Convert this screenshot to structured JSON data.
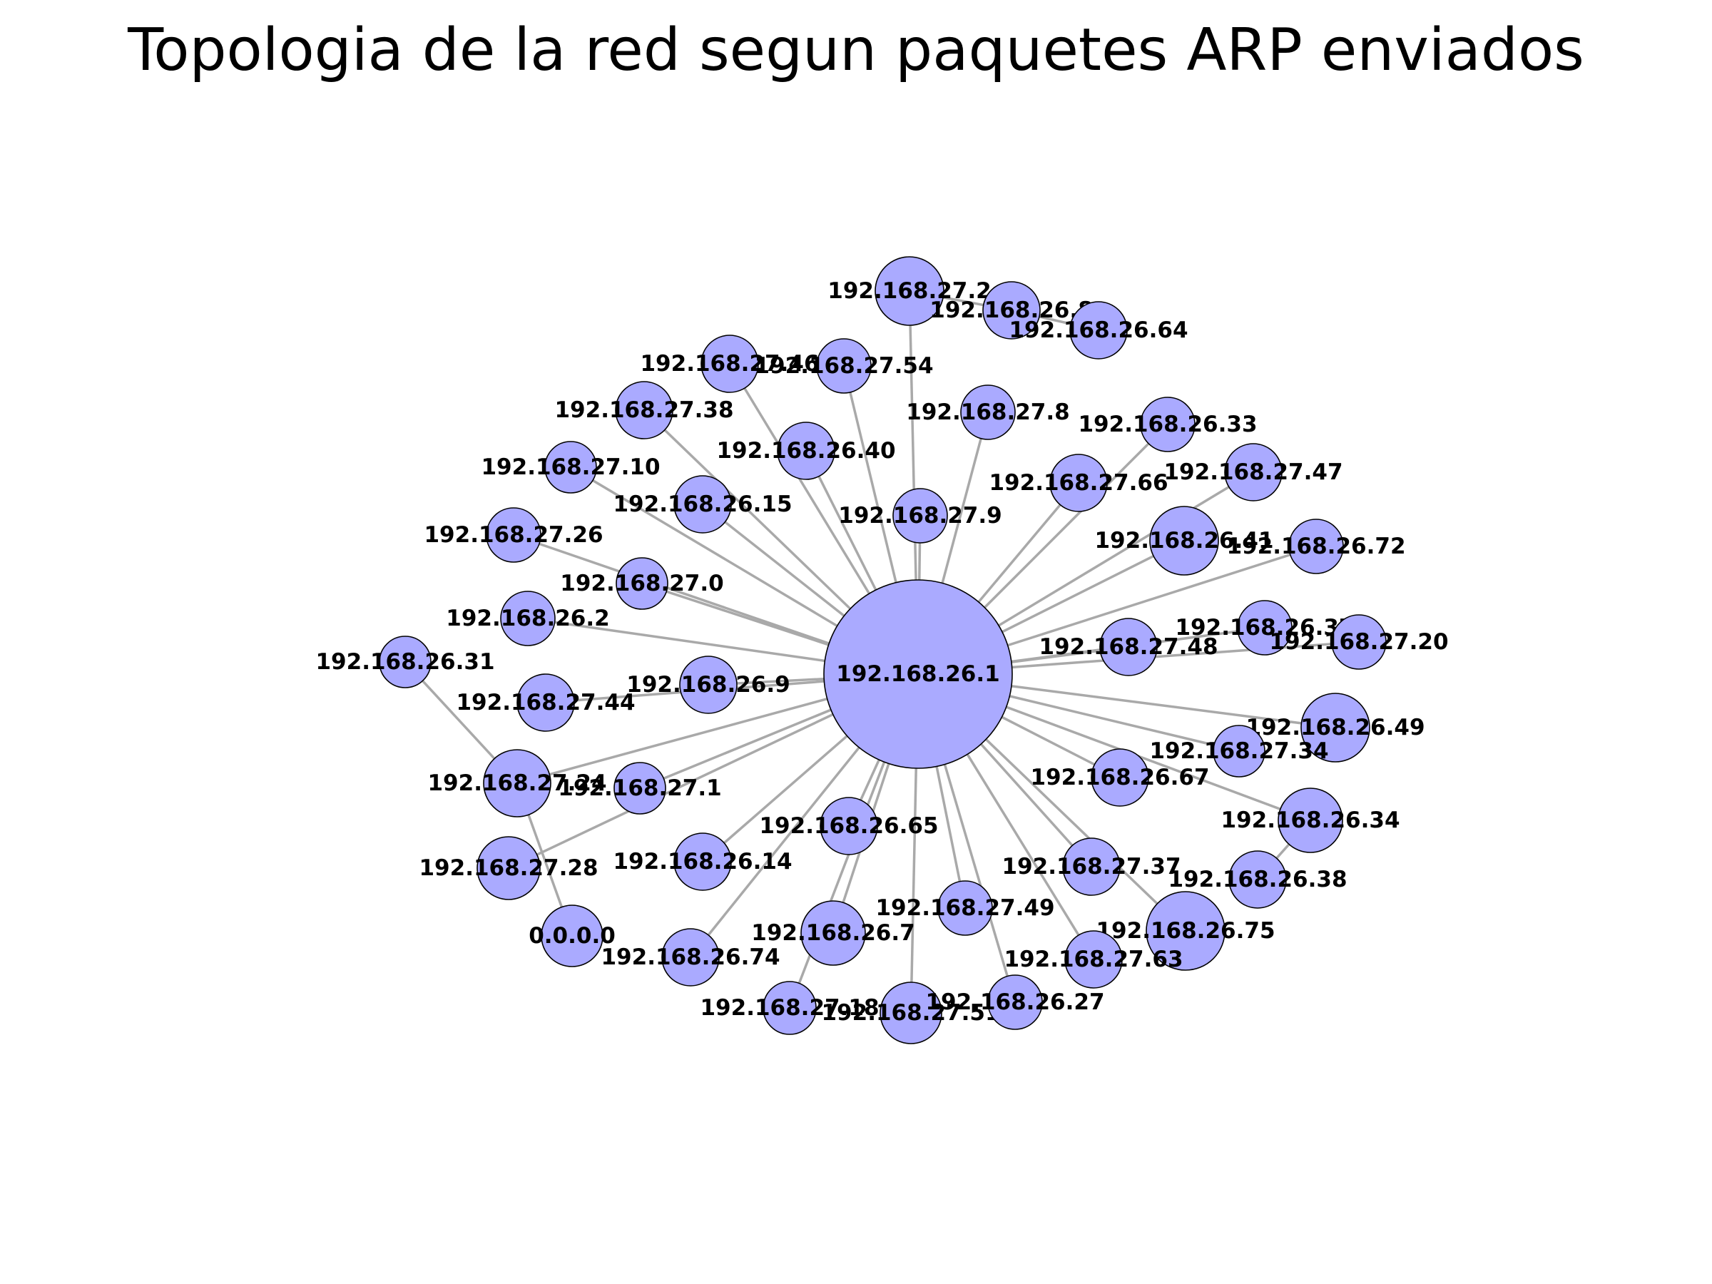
{
  "title": "Topologia de la red segun paquetes ARP enviados",
  "colors": {
    "node_fill": "#aaaaff",
    "node_stroke": "#000000",
    "edge": "#a9a9a9"
  },
  "nodes": [
    {
      "id": "192.168.26.1"
    },
    {
      "id": "192.168.27.2"
    },
    {
      "id": "192.168.26.8"
    },
    {
      "id": "192.168.26.64"
    },
    {
      "id": "192.168.27.46"
    },
    {
      "id": "192.168.27.54"
    },
    {
      "id": "192.168.27.38"
    },
    {
      "id": "192.168.27.8"
    },
    {
      "id": "192.168.26.33"
    },
    {
      "id": "192.168.26.40"
    },
    {
      "id": "192.168.27.10"
    },
    {
      "id": "192.168.27.66"
    },
    {
      "id": "192.168.27.47"
    },
    {
      "id": "192.168.26.15"
    },
    {
      "id": "192.168.27.9"
    },
    {
      "id": "192.168.27.26"
    },
    {
      "id": "192.168.26.41"
    },
    {
      "id": "192.168.26.72"
    },
    {
      "id": "192.168.27.0"
    },
    {
      "id": "192.168.26.2"
    },
    {
      "id": "192.168.26.37"
    },
    {
      "id": "192.168.27.20"
    },
    {
      "id": "192.168.27.48"
    },
    {
      "id": "192.168.26.31"
    },
    {
      "id": "192.168.26.9"
    },
    {
      "id": "192.168.27.44"
    },
    {
      "id": "192.168.26.49"
    },
    {
      "id": "192.168.27.34"
    },
    {
      "id": "192.168.26.67"
    },
    {
      "id": "192.168.27.24"
    },
    {
      "id": "192.168.27.1"
    },
    {
      "id": "192.168.26.34"
    },
    {
      "id": "192.168.26.65"
    },
    {
      "id": "192.168.27.37"
    },
    {
      "id": "192.168.26.14"
    },
    {
      "id": "192.168.27.28"
    },
    {
      "id": "192.168.26.38"
    },
    {
      "id": "192.168.27.49"
    },
    {
      "id": "192.168.26.75"
    },
    {
      "id": "0.0.0.0"
    },
    {
      "id": "192.168.26.7"
    },
    {
      "id": "192.168.26.74"
    },
    {
      "id": "192.168.27.63"
    },
    {
      "id": "192.168.27.18"
    },
    {
      "id": "192.168.27.51"
    },
    {
      "id": "192.168.26.27"
    }
  ],
  "edges": [
    [
      "192.168.26.1",
      "192.168.27.2"
    ],
    [
      "192.168.27.2",
      "192.168.26.8"
    ],
    [
      "192.168.26.8",
      "192.168.26.64"
    ],
    [
      "192.168.26.1",
      "192.168.27.46"
    ],
    [
      "192.168.26.1",
      "192.168.27.54"
    ],
    [
      "192.168.26.1",
      "192.168.27.38"
    ],
    [
      "192.168.26.1",
      "192.168.27.8"
    ],
    [
      "192.168.26.1",
      "192.168.26.33"
    ],
    [
      "192.168.26.1",
      "192.168.26.40"
    ],
    [
      "192.168.26.1",
      "192.168.27.10"
    ],
    [
      "192.168.26.1",
      "192.168.27.66"
    ],
    [
      "192.168.26.1",
      "192.168.27.47"
    ],
    [
      "192.168.26.1",
      "192.168.26.15"
    ],
    [
      "192.168.26.1",
      "192.168.27.9"
    ],
    [
      "192.168.26.1",
      "192.168.27.26"
    ],
    [
      "192.168.26.1",
      "192.168.26.41"
    ],
    [
      "192.168.26.1",
      "192.168.26.72"
    ],
    [
      "192.168.26.1",
      "192.168.27.0"
    ],
    [
      "192.168.26.1",
      "192.168.26.2"
    ],
    [
      "192.168.26.1",
      "192.168.26.37"
    ],
    [
      "192.168.26.1",
      "192.168.27.20"
    ],
    [
      "192.168.26.1",
      "192.168.27.48"
    ],
    [
      "192.168.26.1",
      "192.168.26.9"
    ],
    [
      "192.168.26.1",
      "192.168.27.44"
    ],
    [
      "192.168.26.1",
      "192.168.26.49"
    ],
    [
      "192.168.26.1",
      "192.168.27.34"
    ],
    [
      "192.168.26.1",
      "192.168.26.67"
    ],
    [
      "192.168.26.1",
      "192.168.27.24"
    ],
    [
      "192.168.26.1",
      "192.168.27.1"
    ],
    [
      "192.168.26.1",
      "192.168.26.34"
    ],
    [
      "192.168.26.1",
      "192.168.26.65"
    ],
    [
      "192.168.26.1",
      "192.168.27.37"
    ],
    [
      "192.168.26.1",
      "192.168.26.14"
    ],
    [
      "192.168.26.1",
      "192.168.27.28"
    ],
    [
      "192.168.26.1",
      "192.168.27.49"
    ],
    [
      "192.168.26.1",
      "192.168.26.75"
    ],
    [
      "192.168.26.1",
      "192.168.26.7"
    ],
    [
      "192.168.26.1",
      "192.168.26.74"
    ],
    [
      "192.168.26.1",
      "192.168.27.63"
    ],
    [
      "192.168.26.1",
      "192.168.27.18"
    ],
    [
      "192.168.26.1",
      "192.168.27.51"
    ],
    [
      "192.168.26.1",
      "192.168.26.27"
    ],
    [
      "192.168.26.31",
      "192.168.27.24"
    ],
    [
      "192.168.27.24",
      "0.0.0.0"
    ],
    [
      "192.168.26.34",
      "192.168.26.38"
    ]
  ]
}
